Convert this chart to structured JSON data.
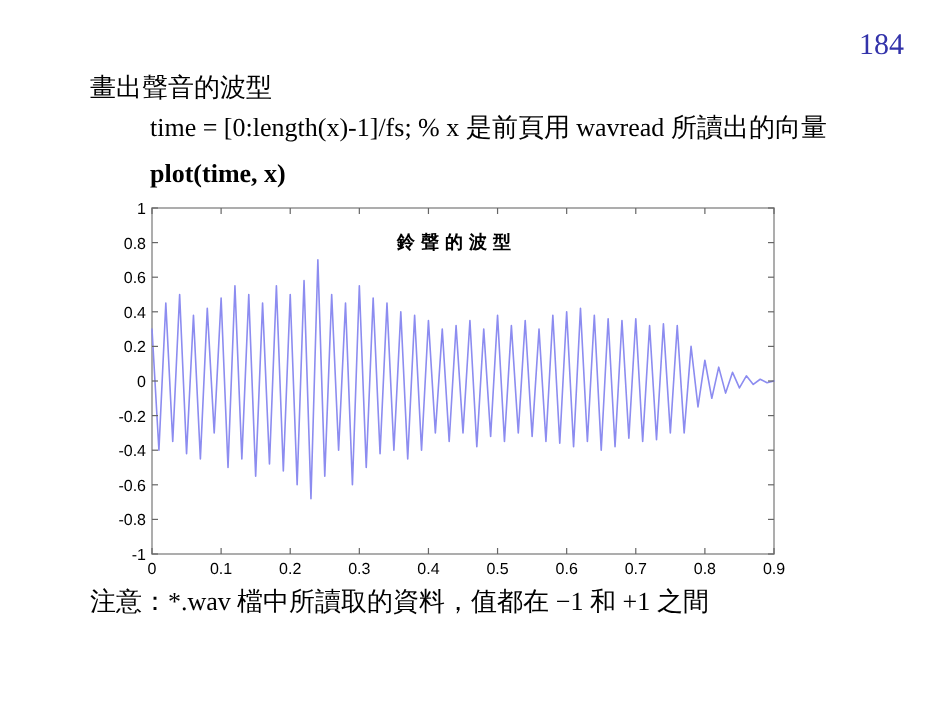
{
  "chart_data": {
    "type": "line",
    "title": "鈴聲的波型",
    "annotations": [
      "184",
      "畫出聲音的波型",
      "time = [0:length(x)-1]/fs;    % x 是前頁用 wavread 所讀出的向量",
      "plot(time, x)",
      "注意：*.wav 檔中所讀取的資料，值都在 −1 和 +1 之間"
    ],
    "x": [
      0,
      0.01,
      0.02,
      0.03,
      0.04,
      0.05,
      0.06,
      0.07,
      0.08,
      0.09,
      0.1,
      0.11,
      0.12,
      0.13,
      0.14,
      0.15,
      0.16,
      0.17,
      0.18,
      0.19,
      0.2,
      0.21,
      0.22,
      0.23,
      0.24,
      0.25,
      0.26,
      0.27,
      0.28,
      0.29,
      0.3,
      0.31,
      0.32,
      0.33,
      0.34,
      0.35,
      0.36,
      0.37,
      0.38,
      0.39,
      0.4,
      0.41,
      0.42,
      0.43,
      0.44,
      0.45,
      0.46,
      0.47,
      0.48,
      0.49,
      0.5,
      0.51,
      0.52,
      0.53,
      0.54,
      0.55,
      0.56,
      0.57,
      0.58,
      0.59,
      0.6,
      0.61,
      0.62,
      0.63,
      0.64,
      0.65,
      0.66,
      0.67,
      0.68,
      0.69,
      0.7,
      0.71,
      0.72,
      0.73,
      0.74,
      0.75,
      0.76,
      0.77,
      0.78,
      0.79,
      0.8,
      0.81,
      0.82,
      0.83,
      0.84,
      0.85,
      0.86,
      0.87,
      0.88,
      0.89,
      0.9
    ],
    "series": [
      {
        "color": "#8c8cf0",
        "values": [
          0.3,
          -0.4,
          0.45,
          -0.35,
          0.5,
          -0.42,
          0.38,
          -0.45,
          0.42,
          -0.3,
          0.48,
          -0.5,
          0.55,
          -0.45,
          0.5,
          -0.55,
          0.45,
          -0.48,
          0.55,
          -0.52,
          0.5,
          -0.6,
          0.58,
          -0.68,
          0.7,
          -0.55,
          0.5,
          -0.4,
          0.45,
          -0.6,
          0.55,
          -0.5,
          0.48,
          -0.42,
          0.45,
          -0.4,
          0.4,
          -0.45,
          0.38,
          -0.4,
          0.35,
          -0.3,
          0.3,
          -0.35,
          0.32,
          -0.3,
          0.35,
          -0.38,
          0.3,
          -0.32,
          0.38,
          -0.35,
          0.32,
          -0.3,
          0.35,
          -0.32,
          0.3,
          -0.35,
          0.38,
          -0.36,
          0.4,
          -0.38,
          0.42,
          -0.35,
          0.38,
          -0.4,
          0.36,
          -0.38,
          0.35,
          -0.33,
          0.36,
          -0.35,
          0.32,
          -0.34,
          0.33,
          -0.3,
          0.32,
          -0.3,
          0.2,
          -0.15,
          0.12,
          -0.1,
          0.08,
          -0.07,
          0.05,
          -0.04,
          0.03,
          -0.02,
          0.01,
          -0.01,
          0
        ]
      }
    ],
    "xlim": [
      0,
      0.9
    ],
    "ylim": [
      -1,
      1
    ],
    "xticks": [
      0,
      0.1,
      0.2,
      0.3,
      0.4,
      0.5,
      0.6,
      0.7,
      0.8,
      0.9
    ],
    "yticks": [
      -1,
      -0.8,
      -0.6,
      -0.4,
      -0.2,
      0,
      0.2,
      0.4,
      0.6,
      0.8,
      1
    ]
  }
}
